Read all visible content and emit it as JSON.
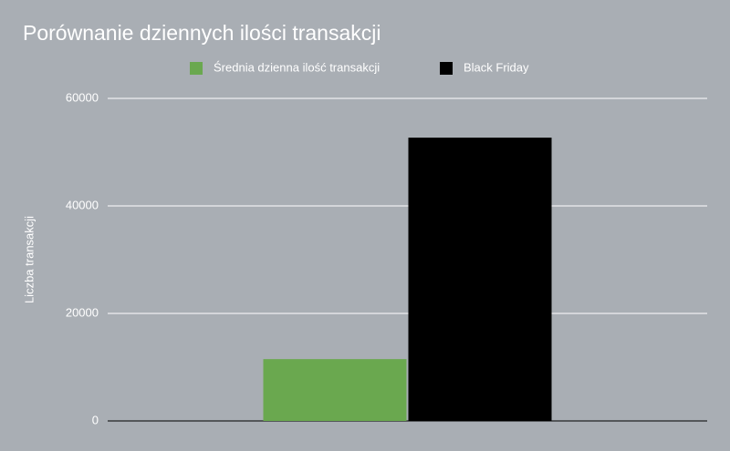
{
  "chart_data": {
    "type": "bar",
    "title": "Porównanie dziennych ilości transakcji",
    "y_label": "Liczba transakcji",
    "categories": [
      null
    ],
    "series": [
      {
        "name": "Średnia dzienna ilość transakcji",
        "color": "#6aa84f",
        "values": [
          11500
        ]
      },
      {
        "name": "Black Friday",
        "color": "#000000",
        "values": [
          52700
        ]
      }
    ],
    "ylim": [
      0,
      60000
    ],
    "yticks": [
      0,
      20000,
      40000,
      60000
    ],
    "grid": true,
    "legend": "top"
  }
}
